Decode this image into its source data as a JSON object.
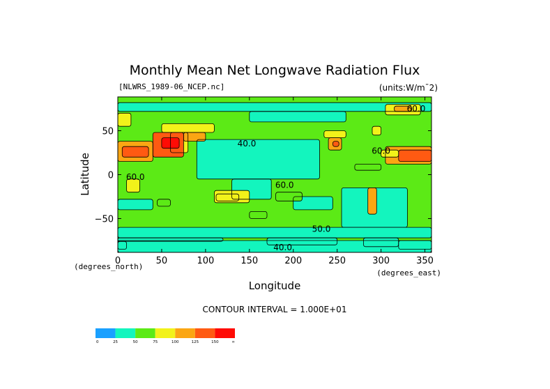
{
  "chart_data": {
    "type": "heatmap",
    "title": "Monthly Mean Net Longwave Radiation Flux",
    "source_label": "[NLWRS_1989-06_NCEP.nc]",
    "units_label": "(units:W/m^2)",
    "units_display": "(units:W/m¯2)",
    "xlabel": "Longitude",
    "ylabel": "Latitude",
    "x_unit_label": "(degrees_east)",
    "y_unit_label": "(degrees_north)",
    "xlim": [
      0,
      357.5
    ],
    "ylim": [
      -88.5,
      88.5
    ],
    "x_ticks": [
      0,
      50,
      100,
      150,
      200,
      250,
      300,
      350
    ],
    "x_tick_labels": [
      "0",
      "50",
      "100",
      "150",
      "200",
      "250",
      "300",
      "350"
    ],
    "y_ticks": [
      50,
      0,
      -50
    ],
    "y_tick_labels": [
      "50",
      "0",
      "−50"
    ],
    "contour_interval_text": "CONTOUR INTERVAL = 1.000E+01",
    "contour_labels": [
      {
        "lon": 147,
        "lat": 32,
        "text": "40.0"
      },
      {
        "lon": 190,
        "lat": -15,
        "text": "60.0"
      },
      {
        "lon": 300,
        "lat": 24,
        "text": "60.0"
      },
      {
        "lon": 232,
        "lat": -65,
        "text": "50.0"
      },
      {
        "lon": 340,
        "lat": 72,
        "text": "60.0"
      },
      {
        "lon": 20,
        "lat": -6,
        "text": "60.0"
      },
      {
        "lon": 188,
        "lat": -86,
        "text": "40.0"
      }
    ],
    "colorbar": {
      "levels": [
        "0",
        "25",
        "50",
        "75",
        "100",
        "125",
        "150",
        "∞"
      ],
      "colors": [
        "#1aa0ff",
        "#13f5be",
        "#5cea16",
        "#f2f21a",
        "#fba613",
        "#ff5a12",
        "#ff0b05"
      ]
    },
    "regions": [
      {
        "lon": [
          0,
          357.5
        ],
        "lat": [
          -88.5,
          88.5
        ],
        "value": 55
      },
      {
        "lon": [
          0,
          357.5
        ],
        "lat": [
          72,
          82
        ],
        "value": 45
      },
      {
        "lon": [
          150,
          260
        ],
        "lat": [
          60,
          72
        ],
        "value": 42
      },
      {
        "lon": [
          90,
          230
        ],
        "lat": [
          -5,
          40
        ],
        "value": 45
      },
      {
        "lon": [
          130,
          175
        ],
        "lat": [
          -28,
          -5
        ],
        "value": 45
      },
      {
        "lon": [
          200,
          245
        ],
        "lat": [
          -40,
          -25
        ],
        "value": 45
      },
      {
        "lon": [
          0,
          40
        ],
        "lat": [
          -40,
          -28
        ],
        "value": 45
      },
      {
        "lon": [
          255,
          330
        ],
        "lat": [
          -60,
          -15
        ],
        "value": 45
      },
      {
        "lon": [
          0,
          357.5
        ],
        "lat": [
          -72,
          -60
        ],
        "value": 45
      },
      {
        "lon": [
          0,
          357.5
        ],
        "lat": [
          -88.5,
          -75
        ],
        "value": 45
      },
      {
        "lon": [
          0,
          120
        ],
        "lat": [
          -76,
          -72
        ],
        "value": 30
      },
      {
        "lon": [
          170,
          250
        ],
        "lat": [
          -80,
          -72
        ],
        "value": 35
      },
      {
        "lon": [
          280,
          320
        ],
        "lat": [
          -82,
          -72
        ],
        "value": 35
      },
      {
        "lon": [
          320,
          357.5
        ],
        "lat": [
          -85,
          -75
        ],
        "value": 30
      },
      {
        "lon": [
          0,
          10
        ],
        "lat": [
          -85,
          -76
        ],
        "value": 30
      },
      {
        "lon": [
          0,
          15
        ],
        "lat": [
          55,
          70
        ],
        "value": 75
      },
      {
        "lon": [
          50,
          110
        ],
        "lat": [
          48,
          58
        ],
        "value": 80
      },
      {
        "lon": [
          60,
          80
        ],
        "lat": [
          25,
          48
        ],
        "value": 80
      },
      {
        "lon": [
          0,
          40
        ],
        "lat": [
          15,
          38
        ],
        "value": 110
      },
      {
        "lon": [
          5,
          35
        ],
        "lat": [
          20,
          32
        ],
        "value": 135
      },
      {
        "lon": [
          40,
          75
        ],
        "lat": [
          20,
          48
        ],
        "value": 130
      },
      {
        "lon": [
          50,
          70
        ],
        "lat": [
          30,
          42
        ],
        "value": 155
      },
      {
        "lon": [
          75,
          100
        ],
        "lat": [
          38,
          48
        ],
        "value": 110
      },
      {
        "lon": [
          240,
          255
        ],
        "lat": [
          28,
          42
        ],
        "value": 110
      },
      {
        "lon": [
          245,
          252
        ],
        "lat": [
          32,
          38
        ],
        "value": 130
      },
      {
        "lon": [
          235,
          260
        ],
        "lat": [
          42,
          50
        ],
        "value": 80
      },
      {
        "lon": [
          290,
          300
        ],
        "lat": [
          45,
          55
        ],
        "value": 80
      },
      {
        "lon": [
          305,
          357.5
        ],
        "lat": [
          12,
          32
        ],
        "value": 105
      },
      {
        "lon": [
          320,
          357.5
        ],
        "lat": [
          15,
          28
        ],
        "value": 130
      },
      {
        "lon": [
          300,
          320
        ],
        "lat": [
          20,
          28
        ],
        "value": 80
      },
      {
        "lon": [
          305,
          345
        ],
        "lat": [
          68,
          80
        ],
        "value": 90
      },
      {
        "lon": [
          315,
          335
        ],
        "lat": [
          72,
          78
        ],
        "value": 115
      },
      {
        "lon": [
          10,
          25
        ],
        "lat": [
          -20,
          -5
        ],
        "value": 80
      },
      {
        "lon": [
          110,
          150
        ],
        "lat": [
          -32,
          -18
        ],
        "value": 80
      },
      {
        "lon": [
          112,
          138
        ],
        "lat": [
          -30,
          -22
        ],
        "value": 90
      },
      {
        "lon": [
          285,
          295
        ],
        "lat": [
          -45,
          -15
        ],
        "value": 110
      },
      {
        "lon": [
          270,
          300
        ],
        "lat": [
          5,
          12
        ],
        "value": 70
      },
      {
        "lon": [
          180,
          210
        ],
        "lat": [
          -30,
          -20
        ],
        "value": 62
      },
      {
        "lon": [
          150,
          170
        ],
        "lat": [
          -50,
          -42
        ],
        "value": 65
      },
      {
        "lon": [
          45,
          60
        ],
        "lat": [
          -36,
          -28
        ],
        "value": 70
      }
    ]
  }
}
